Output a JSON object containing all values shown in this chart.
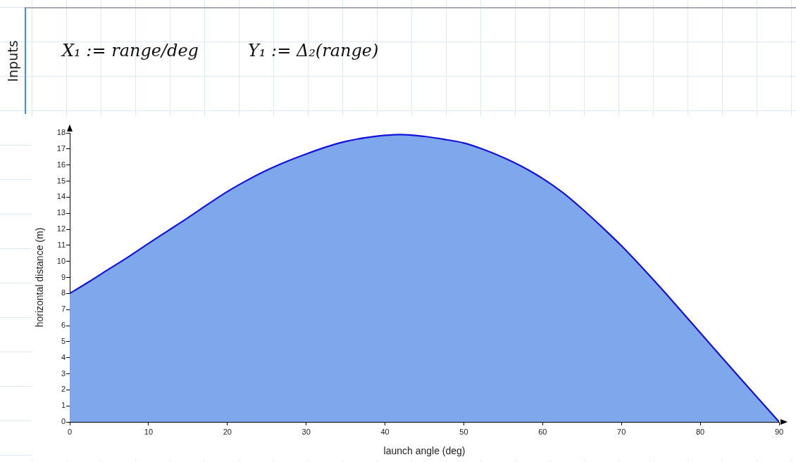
{
  "chart_data": {
    "type": "area",
    "xlabel": "launch angle (deg)",
    "ylabel": "horizontal distance (m)",
    "annotations": [
      "Inputs",
      "X₁ := range/deg",
      "Y₁ := Δ₂(range)"
    ],
    "x": [
      0,
      2.5,
      5,
      7.5,
      10,
      12.5,
      15,
      17.5,
      20,
      22.5,
      25,
      27.5,
      30,
      32.5,
      35,
      37.5,
      40,
      42,
      45,
      47.5,
      50,
      52.5,
      55,
      57.5,
      60,
      62.5,
      65,
      67.5,
      70,
      72.5,
      75,
      77.5,
      80,
      82.5,
      85,
      87.5,
      90
    ],
    "series": [
      {
        "color": "#7ea7ec",
        "values": [
          8.0,
          8.75,
          9.53,
          10.3,
          11.12,
          11.92,
          12.72,
          13.55,
          14.35,
          15.05,
          15.68,
          16.22,
          16.69,
          17.12,
          17.47,
          17.7,
          17.85,
          17.9,
          17.78,
          17.6,
          17.37,
          16.97,
          16.47,
          15.88,
          15.16,
          14.3,
          13.27,
          12.15,
          10.97,
          9.68,
          8.34,
          6.95,
          5.55,
          4.15,
          2.76,
          1.38,
          0
        ]
      }
    ],
    "xlim": [
      0,
      90
    ],
    "xticks": [
      0,
      10,
      20,
      30,
      40,
      50,
      60,
      70,
      80,
      90
    ],
    "ylim": [
      0,
      18
    ],
    "yticks": [
      0,
      1,
      2,
      3,
      4,
      5,
      6,
      7,
      8,
      9,
      10,
      11,
      12,
      13,
      14,
      15,
      16,
      17,
      18
    ],
    "grid": false,
    "legend": false,
    "marker": "none",
    "line_style": "solid"
  }
}
